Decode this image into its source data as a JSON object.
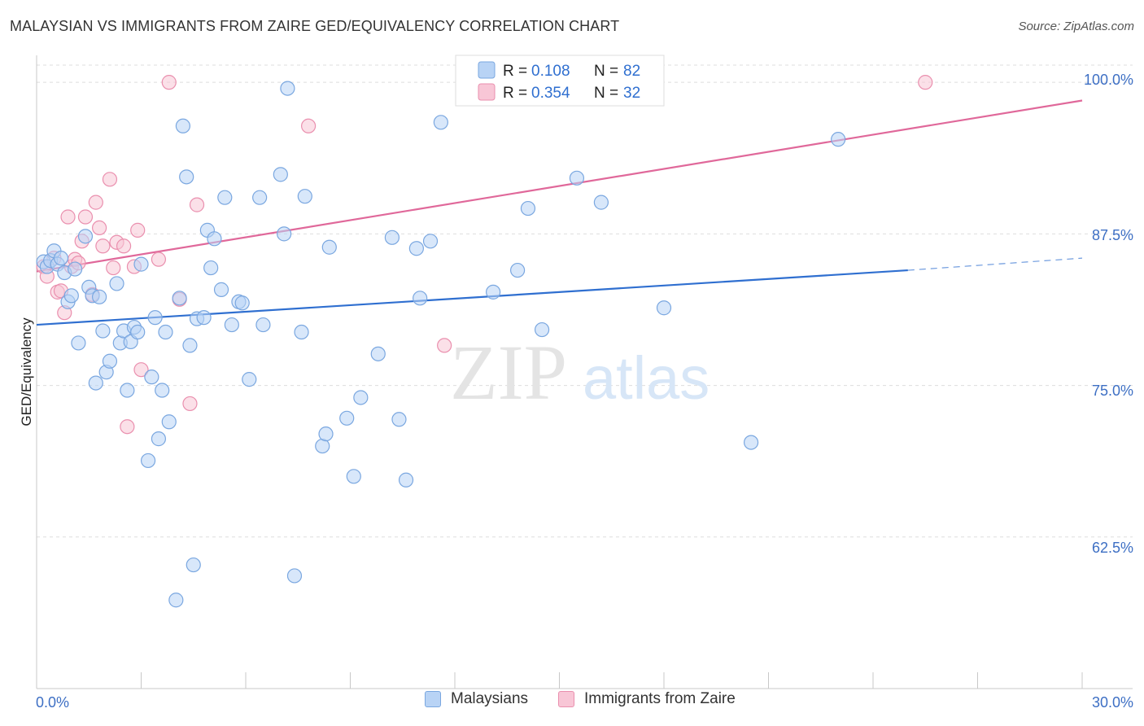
{
  "header": {
    "title": "MALAYSIAN VS IMMIGRANTS FROM ZAIRE GED/EQUIVALENCY CORRELATION CHART",
    "source": "Source: ZipAtlas.com"
  },
  "watermark": {
    "zip": "ZIP",
    "atlas": "atlas"
  },
  "legend_stats": [
    {
      "r_label": "R =",
      "r_value": "0.108",
      "n_label": "N =",
      "n_value": "82"
    },
    {
      "r_label": "R =",
      "r_value": "0.354",
      "n_label": "N =",
      "n_value": "32"
    }
  ],
  "colors": {
    "blue_fill": "#b8d3f5",
    "blue_stroke": "#7aa7e0",
    "blue_line": "#2f6fd0",
    "pink_fill": "#f8c6d6",
    "pink_stroke": "#ea8fae",
    "pink_line": "#e0689a",
    "tick_text": "#3d6fc4",
    "grid": "#dddddd"
  },
  "chart_data": {
    "type": "scatter",
    "title": "MALAYSIAN VS IMMIGRANTS FROM ZAIRE GED/EQUIVALENCY CORRELATION CHART",
    "xlabel": "",
    "ylabel": "GED/Equivalency",
    "xlim": [
      0,
      30
    ],
    "ylim": [
      50,
      101.5
    ],
    "x_tick_labels": [
      "0.0%",
      "30.0%"
    ],
    "y_ticks": [
      62.5,
      75.0,
      87.5,
      100.0
    ],
    "y_tick_labels": [
      "62.5%",
      "75.0%",
      "87.5%",
      "100.0%"
    ],
    "grid": true,
    "legend": "bottom-center",
    "series": [
      {
        "name": "Malaysians",
        "color": "#b8d3f5",
        "trend": {
          "x": [
            0,
            25
          ],
          "y": [
            80.0,
            84.5
          ],
          "dashed_to_x": 30,
          "dashed_to_y": 85.5
        },
        "points": [
          [
            0.2,
            85.2
          ],
          [
            0.3,
            84.8
          ],
          [
            0.4,
            85.3
          ],
          [
            0.5,
            86.1
          ],
          [
            0.6,
            85.0
          ],
          [
            0.7,
            85.5
          ],
          [
            0.8,
            84.3
          ],
          [
            0.9,
            81.9
          ],
          [
            1.0,
            82.4
          ],
          [
            1.1,
            84.6
          ],
          [
            1.2,
            78.5
          ],
          [
            1.4,
            87.3
          ],
          [
            1.5,
            83.1
          ],
          [
            1.6,
            82.4
          ],
          [
            1.7,
            75.2
          ],
          [
            1.8,
            82.3
          ],
          [
            1.9,
            79.5
          ],
          [
            2.0,
            76.1
          ],
          [
            2.1,
            77.0
          ],
          [
            2.3,
            83.4
          ],
          [
            2.4,
            78.5
          ],
          [
            2.5,
            79.5
          ],
          [
            2.6,
            74.6
          ],
          [
            2.7,
            78.6
          ],
          [
            2.8,
            79.8
          ],
          [
            2.9,
            79.4
          ],
          [
            3.0,
            85.0
          ],
          [
            3.2,
            68.8
          ],
          [
            3.3,
            75.7
          ],
          [
            3.4,
            80.6
          ],
          [
            3.5,
            70.6
          ],
          [
            3.6,
            74.6
          ],
          [
            3.7,
            79.4
          ],
          [
            3.8,
            72.0
          ],
          [
            4.0,
            57.3
          ],
          [
            4.1,
            82.2
          ],
          [
            4.2,
            96.4
          ],
          [
            4.3,
            92.2
          ],
          [
            4.4,
            78.3
          ],
          [
            4.5,
            60.2
          ],
          [
            4.6,
            80.5
          ],
          [
            4.8,
            80.6
          ],
          [
            4.9,
            87.8
          ],
          [
            5.0,
            84.7
          ],
          [
            5.1,
            87.1
          ],
          [
            5.3,
            82.9
          ],
          [
            5.4,
            90.5
          ],
          [
            5.6,
            80.0
          ],
          [
            5.8,
            81.9
          ],
          [
            5.9,
            81.8
          ],
          [
            6.1,
            75.5
          ],
          [
            6.4,
            90.5
          ],
          [
            6.5,
            80.0
          ],
          [
            7.0,
            92.4
          ],
          [
            7.1,
            87.5
          ],
          [
            7.2,
            99.5
          ],
          [
            7.4,
            59.3
          ],
          [
            7.6,
            79.4
          ],
          [
            7.7,
            90.6
          ],
          [
            8.2,
            70.0
          ],
          [
            8.3,
            71.0
          ],
          [
            8.4,
            86.4
          ],
          [
            8.9,
            72.3
          ],
          [
            9.1,
            67.5
          ],
          [
            9.3,
            74.0
          ],
          [
            9.8,
            77.6
          ],
          [
            10.2,
            87.2
          ],
          [
            10.4,
            72.2
          ],
          [
            10.6,
            67.2
          ],
          [
            10.9,
            86.3
          ],
          [
            11.0,
            82.2
          ],
          [
            11.3,
            86.9
          ],
          [
            11.6,
            96.7
          ],
          [
            13.1,
            82.7
          ],
          [
            13.8,
            84.5
          ],
          [
            14.1,
            89.6
          ],
          [
            14.5,
            79.6
          ],
          [
            15.5,
            92.1
          ],
          [
            16.2,
            90.1
          ],
          [
            18.0,
            81.4
          ],
          [
            20.5,
            70.3
          ],
          [
            23.0,
            95.3
          ]
        ]
      },
      {
        "name": "Immigrants from Zaire",
        "color": "#f8c6d6",
        "trend": {
          "x": [
            0,
            30
          ],
          "y": [
            84.4,
            98.5
          ]
        },
        "points": [
          [
            0.2,
            84.8
          ],
          [
            0.3,
            84.0
          ],
          [
            0.5,
            85.5
          ],
          [
            0.6,
            82.7
          ],
          [
            0.7,
            82.8
          ],
          [
            0.8,
            81.0
          ],
          [
            0.9,
            88.9
          ],
          [
            1.0,
            84.8
          ],
          [
            1.1,
            85.4
          ],
          [
            1.2,
            85.1
          ],
          [
            1.3,
            86.9
          ],
          [
            1.4,
            88.9
          ],
          [
            1.6,
            82.5
          ],
          [
            1.7,
            90.1
          ],
          [
            1.8,
            88.0
          ],
          [
            1.9,
            86.5
          ],
          [
            2.1,
            92.0
          ],
          [
            2.2,
            84.7
          ],
          [
            2.3,
            86.8
          ],
          [
            2.5,
            86.5
          ],
          [
            2.6,
            71.6
          ],
          [
            2.8,
            84.8
          ],
          [
            2.9,
            87.8
          ],
          [
            3.0,
            76.3
          ],
          [
            3.5,
            85.4
          ],
          [
            3.8,
            100.0
          ],
          [
            4.1,
            82.1
          ],
          [
            4.4,
            73.5
          ],
          [
            4.6,
            89.9
          ],
          [
            7.8,
            96.4
          ],
          [
            11.7,
            78.3
          ],
          [
            25.5,
            100.0
          ]
        ]
      }
    ]
  }
}
